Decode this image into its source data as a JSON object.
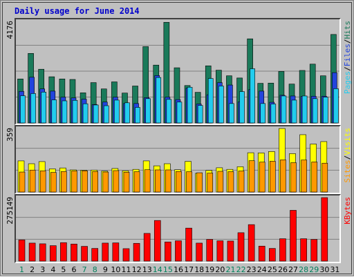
{
  "title": "Daily usage for June 2014",
  "chart_data": [
    {
      "type": "bar",
      "name": "hits-files-pages",
      "max_label": "4176",
      "ylim": [
        0,
        4176
      ],
      "x": [
        1,
        2,
        3,
        4,
        5,
        6,
        7,
        8,
        9,
        10,
        11,
        12,
        13,
        14,
        15,
        16,
        17,
        18,
        19,
        20,
        21,
        22,
        23,
        24,
        25,
        26,
        27,
        28,
        29,
        30,
        31
      ],
      "series": [
        {
          "name": "Hits",
          "color": "#1a7a5a",
          "values": [
            1810,
            2860,
            2210,
            1900,
            1810,
            1790,
            1240,
            1660,
            1400,
            1690,
            1230,
            1520,
            3140,
            2380,
            4140,
            2270,
            1540,
            1260,
            2350,
            2170,
            1940,
            1850,
            3460,
            1630,
            1640,
            2120,
            1600,
            2160,
            2420,
            1940,
            3640
          ]
        },
        {
          "name": "Files",
          "color": "#2244dd",
          "values": [
            1300,
            1880,
            1400,
            1310,
            1060,
            1030,
            980,
            760,
            860,
            1060,
            800,
            800,
            1040,
            1950,
            1060,
            960,
            1430,
            780,
            1160,
            1660,
            1560,
            870,
            1370,
            1310,
            850,
            1140,
            1110,
            1090,
            1100,
            1100,
            2070
          ]
        },
        {
          "name": "Pages",
          "color": "#22ccee",
          "values": [
            1120,
            1210,
            1270,
            950,
            910,
            930,
            790,
            740,
            710,
            940,
            830,
            640,
            1000,
            1870,
            970,
            860,
            1470,
            720,
            1830,
            1520,
            800,
            1290,
            2230,
            800,
            780,
            1110,
            940,
            1110,
            1000,
            1060,
            1410
          ]
        }
      ],
      "legend": [
        "Pages",
        "/",
        "Files",
        "/",
        "Hits"
      ]
    },
    {
      "type": "bar",
      "name": "visits-sites",
      "max_label": "359",
      "ylim": [
        0,
        359
      ],
      "x": [
        1,
        2,
        3,
        4,
        5,
        6,
        7,
        8,
        9,
        10,
        11,
        12,
        13,
        14,
        15,
        16,
        17,
        18,
        19,
        20,
        21,
        22,
        23,
        24,
        25,
        26,
        27,
        28,
        29,
        30,
        31
      ],
      "series": [
        {
          "name": "Visits",
          "color": "#ffff00",
          "values": [
            176,
            160,
            172,
            131,
            136,
            125,
            123,
            124,
            118,
            133,
            120,
            128,
            176,
            148,
            160,
            126,
            173,
            106,
            122,
            137,
            128,
            143,
            222,
            221,
            229,
            361,
            217,
            324,
            271,
            285,
            0
          ]
        },
        {
          "name": "Sites",
          "color": "#ff9900",
          "values": [
            113,
            124,
            120,
            111,
            116,
            119,
            120,
            116,
            113,
            121,
            112,
            115,
            126,
            125,
            125,
            116,
            115,
            109,
            107,
            117,
            115,
            119,
            177,
            169,
            174,
            182,
            166,
            181,
            170,
            163,
            0
          ]
        }
      ],
      "legend": [
        "Sites",
        "/",
        "Visits"
      ]
    },
    {
      "type": "bar",
      "name": "kbytes",
      "max_label": "275149",
      "ylim": [
        0,
        275149
      ],
      "x": [
        1,
        2,
        3,
        4,
        5,
        6,
        7,
        8,
        9,
        10,
        11,
        12,
        13,
        14,
        15,
        16,
        17,
        18,
        19,
        20,
        21,
        22,
        23,
        24,
        25,
        26,
        27,
        28,
        29,
        30,
        31
      ],
      "series": [
        {
          "name": "KBytes",
          "color": "#ff0000",
          "values": [
            92000,
            78000,
            75000,
            67000,
            80000,
            74000,
            64000,
            55000,
            78000,
            79000,
            54000,
            77000,
            120000,
            176000,
            83000,
            88000,
            143000,
            78000,
            94000,
            88000,
            87000,
            123000,
            158000,
            65000,
            55000,
            97000,
            220000,
            97000,
            94000,
            275000,
            0
          ]
        }
      ],
      "legend": [
        "KBytes"
      ]
    }
  ],
  "days": [
    {
      "label": "1",
      "weekend": true
    },
    {
      "label": "2",
      "weekend": false
    },
    {
      "label": "3",
      "weekend": false
    },
    {
      "label": "4",
      "weekend": false
    },
    {
      "label": "5",
      "weekend": false
    },
    {
      "label": "6",
      "weekend": false
    },
    {
      "label": "7",
      "weekend": true
    },
    {
      "label": "8",
      "weekend": true
    },
    {
      "label": "9",
      "weekend": false
    },
    {
      "label": "10",
      "weekend": false
    },
    {
      "label": "11",
      "weekend": false
    },
    {
      "label": "12",
      "weekend": false
    },
    {
      "label": "13",
      "weekend": false
    },
    {
      "label": "14",
      "weekend": true
    },
    {
      "label": "15",
      "weekend": true
    },
    {
      "label": "16",
      "weekend": false
    },
    {
      "label": "17",
      "weekend": false
    },
    {
      "label": "18",
      "weekend": false
    },
    {
      "label": "19",
      "weekend": false
    },
    {
      "label": "20",
      "weekend": false
    },
    {
      "label": "21",
      "weekend": true
    },
    {
      "label": "22",
      "weekend": true
    },
    {
      "label": "23",
      "weekend": false
    },
    {
      "label": "24",
      "weekend": false
    },
    {
      "label": "25",
      "weekend": false
    },
    {
      "label": "26",
      "weekend": false
    },
    {
      "label": "27",
      "weekend": false
    },
    {
      "label": "28",
      "weekend": true
    },
    {
      "label": "29",
      "weekend": true
    },
    {
      "label": "30",
      "weekend": false
    },
    {
      "label": "31",
      "weekend": false
    }
  ],
  "colors": {
    "weekday_label": "#000000",
    "weekend_label": "#00805c",
    "panel_bg": "#c0c0c0",
    "gridline": "#808080"
  }
}
